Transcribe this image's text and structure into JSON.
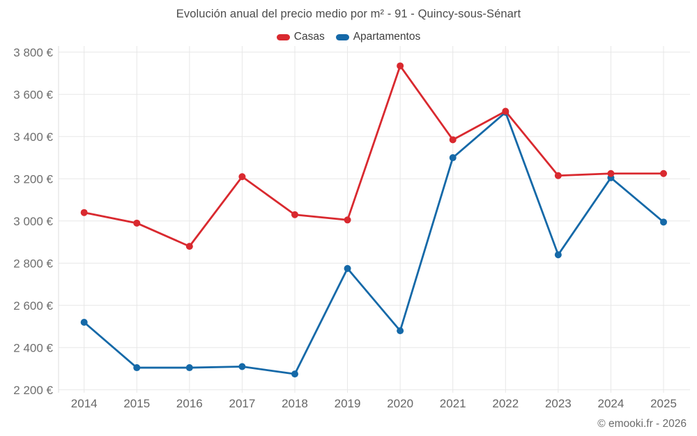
{
  "header": {
    "title": "Evolución anual del precio medio por m² - 91 - Quincy-sous-Sénart"
  },
  "legend": {
    "items": [
      {
        "label": "Casas",
        "color": "#d9292f"
      },
      {
        "label": "Apartamentos",
        "color": "#1569a8"
      }
    ]
  },
  "footer": {
    "copyright": "© emooki.fr - 2026"
  },
  "colors": {
    "casas": "#d9292f",
    "apartamentos": "#1569a8",
    "grid": "#e7e7e7",
    "axis_line": "#dedede",
    "y_label": "#6e6e6e",
    "x_label": "#666666"
  },
  "chart_data": {
    "type": "line",
    "title": "Evolución anual del precio medio por m² - 91 - Quincy-sous-Sénart",
    "categories": [
      "2014",
      "2015",
      "2016",
      "2017",
      "2018",
      "2019",
      "2020",
      "2021",
      "2022",
      "2023",
      "2024",
      "2025"
    ],
    "series": [
      {
        "name": "Casas",
        "color": "#d9292f",
        "values": [
          3040,
          2990,
          2880,
          3210,
          3030,
          3005,
          3735,
          3385,
          3520,
          3215,
          3225,
          3225
        ]
      },
      {
        "name": "Apartamentos",
        "color": "#1569a8",
        "values": [
          2520,
          2305,
          2305,
          2310,
          2275,
          2775,
          2480,
          3300,
          3515,
          2840,
          3205,
          2995
        ]
      }
    ],
    "xlabel": "",
    "ylabel": "",
    "ylim": [
      2200,
      3800
    ],
    "ytick_step": 200,
    "yaxis_suffix": " €",
    "thousands_separator": " ",
    "grid": true,
    "legend_position": "top"
  }
}
